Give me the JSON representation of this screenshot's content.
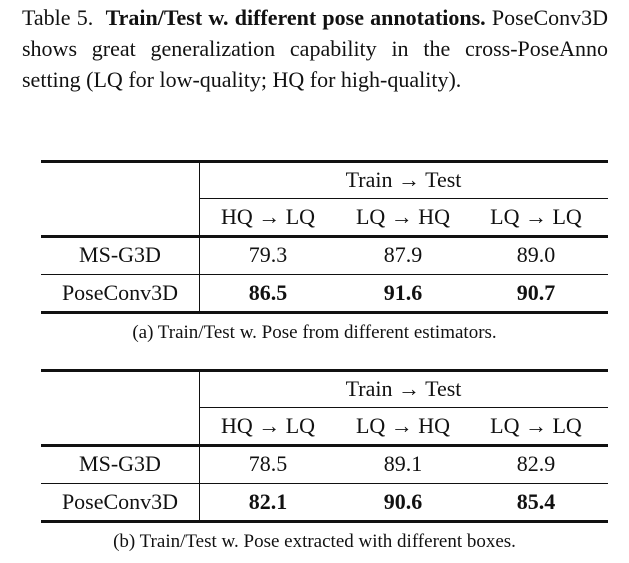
{
  "caption": {
    "label": "Table 5.",
    "title": "Train/Test w. different pose annotations.",
    "text": "PoseConv3D shows great generalization capability in the cross-PoseAnno setting (LQ for low-quality; HQ for high-quality)."
  },
  "tables": [
    {
      "group_header": "Train → Test",
      "columns": [
        "HQ → LQ",
        "LQ → HQ",
        "LQ → LQ"
      ],
      "rows": [
        {
          "method": "MS-G3D",
          "values": [
            "79.3",
            "87.9",
            "89.0"
          ]
        },
        {
          "method": "PoseConv3D",
          "values": [
            "86.5",
            "91.6",
            "90.7"
          ]
        }
      ],
      "caption": "(a) Train/Test w. Pose from different estimators."
    },
    {
      "group_header": "Train → Test",
      "columns": [
        "HQ → LQ",
        "LQ → HQ",
        "LQ → LQ"
      ],
      "rows": [
        {
          "method": "MS-G3D",
          "values": [
            "78.5",
            "89.1",
            "82.9"
          ]
        },
        {
          "method": "PoseConv3D",
          "values": [
            "82.1",
            "90.6",
            "85.4"
          ]
        }
      ],
      "caption": "(b) Train/Test w. Pose extracted with different boxes."
    }
  ]
}
